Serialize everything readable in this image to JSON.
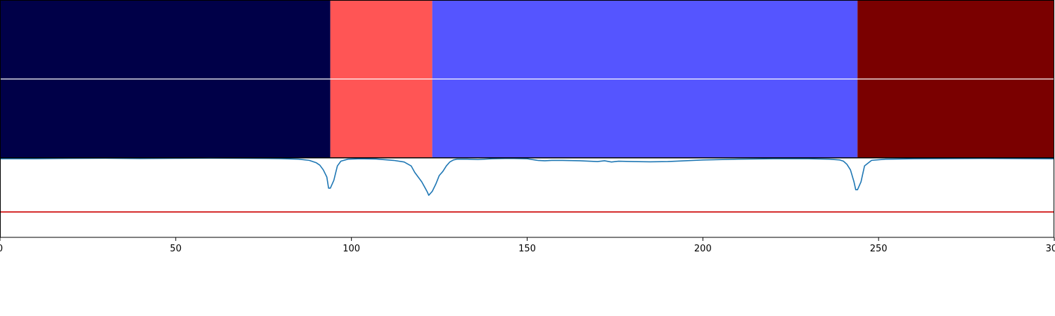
{
  "chart_data": [
    {
      "type": "heatmap",
      "segments": [
        {
          "start": 0,
          "end": 94,
          "color": "#000048"
        },
        {
          "start": 94,
          "end": 123,
          "color": "#ff5555"
        },
        {
          "start": 123,
          "end": 244,
          "color": "#5555ff"
        },
        {
          "start": 244,
          "end": 300,
          "color": "#7a0000"
        }
      ],
      "rows": 2,
      "xlim": [
        0,
        300
      ]
    },
    {
      "type": "line",
      "xlim": [
        0,
        300
      ],
      "ylim": [
        0,
        1
      ],
      "series": [
        {
          "color": "#1f77b4",
          "x": [
            0,
            10,
            20,
            30,
            40,
            50,
            60,
            70,
            80,
            85,
            88,
            90,
            91,
            92,
            93,
            93.5,
            94,
            95,
            96,
            97,
            99,
            102,
            107,
            112,
            115,
            117,
            118,
            119,
            120,
            121,
            121.5,
            122,
            123,
            124,
            125,
            126,
            127,
            128,
            129,
            130,
            133,
            136,
            140,
            145,
            150,
            153,
            155,
            157,
            160,
            165,
            170,
            172,
            174,
            176,
            180,
            185,
            190,
            195,
            200,
            210,
            220,
            230,
            236,
            239,
            240,
            241,
            242,
            243,
            243.5,
            244,
            245,
            246,
            248,
            252,
            260,
            280,
            300
          ],
          "y": [
            0.99,
            0.99,
            0.995,
            0.997,
            0.993,
            0.996,
            0.998,
            0.996,
            0.992,
            0.985,
            0.97,
            0.94,
            0.91,
            0.85,
            0.76,
            0.62,
            0.62,
            0.72,
            0.9,
            0.96,
            0.985,
            0.99,
            0.987,
            0.97,
            0.95,
            0.9,
            0.82,
            0.76,
            0.7,
            0.62,
            0.58,
            0.53,
            0.58,
            0.67,
            0.78,
            0.83,
            0.9,
            0.95,
            0.975,
            0.985,
            0.985,
            0.98,
            0.99,
            0.995,
            0.99,
            0.97,
            0.965,
            0.97,
            0.97,
            0.965,
            0.955,
            0.965,
            0.95,
            0.96,
            0.955,
            0.952,
            0.955,
            0.965,
            0.975,
            0.985,
            0.99,
            0.99,
            0.985,
            0.975,
            0.96,
            0.92,
            0.85,
            0.7,
            0.6,
            0.6,
            0.7,
            0.9,
            0.97,
            0.985,
            0.99,
            0.995,
            0.99
          ]
        },
        {
          "color": "#cc0000",
          "x": [
            0,
            300
          ],
          "y": [
            0.32,
            0.32
          ]
        }
      ],
      "xticks": [
        0,
        50,
        100,
        150,
        200,
        250,
        300
      ],
      "xticklabels": [
        "0",
        "50",
        "100",
        "150",
        "200",
        "250",
        "300"
      ]
    }
  ]
}
